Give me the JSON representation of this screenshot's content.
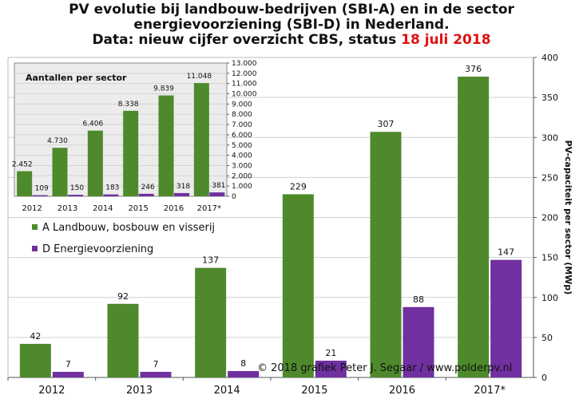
{
  "title": {
    "line1": "PV evolutie bij landbouw-bedrijven (SBI-A) en in de sector",
    "line2": "energievoorziening (SBI-D) in Nederland.",
    "line3_prefix": "Data: nieuw cijfer overzicht CBS, status ",
    "line3_date": "18 juli 2018"
  },
  "copyright": "© 2018 grafiek Peter J. Segaar / www.polderpv.nl",
  "colors": {
    "green": "#4e8a2c",
    "purple": "#7030a0",
    "inset_bg": "#ececec"
  },
  "chart_data": [
    {
      "type": "bar",
      "title": "",
      "categories": [
        "2012",
        "2013",
        "2014",
        "2015",
        "2016",
        "2017*"
      ],
      "series": [
        {
          "name": "A Landbouw, bosbouw en visserij",
          "values": [
            42,
            92,
            137,
            229,
            307,
            376
          ],
          "labels": [
            "42",
            "92",
            "137",
            "229",
            "307",
            "376"
          ]
        },
        {
          "name": "D Energievoorziening",
          "values": [
            7,
            7,
            8,
            21,
            88,
            147
          ],
          "labels": [
            "7",
            "7",
            "8",
            "21",
            "88",
            "147"
          ]
        }
      ],
      "xlabel": "",
      "ylabel": "PV-capaciteit per sector (MWp)",
      "ylim": [
        0,
        400
      ],
      "yticks": [
        "0",
        "50",
        "100",
        "150",
        "200",
        "250",
        "300",
        "350",
        "400"
      ],
      "ytick_values": [
        0,
        50,
        100,
        150,
        200,
        250,
        300,
        350,
        400
      ],
      "y_axis_position": "right",
      "grid": true,
      "legend_position": "left"
    },
    {
      "type": "bar",
      "title": "Aantallen per sector",
      "categories": [
        "2012",
        "2013",
        "2014",
        "2015",
        "2016",
        "2017*"
      ],
      "series": [
        {
          "name": "A Landbouw, bosbouw en visserij",
          "values": [
            2452,
            4730,
            6406,
            8338,
            9839,
            11048
          ],
          "labels": [
            "2.452",
            "4.730",
            "6.406",
            "8.338",
            "9.839",
            "11.048"
          ]
        },
        {
          "name": "D Energievoorziening",
          "values": [
            109,
            150,
            183,
            246,
            318,
            381
          ],
          "labels": [
            "109",
            "150",
            "183",
            "246",
            "318",
            "381"
          ]
        }
      ],
      "ylim": [
        0,
        13000
      ],
      "yticks": [
        "0",
        "1.000",
        "2.000",
        "3.000",
        "4.000",
        "5.000",
        "6.000",
        "7.000",
        "8.000",
        "9.000",
        "10.000",
        "11.000",
        "12.000",
        "13.000"
      ],
      "ytick_values": [
        0,
        1000,
        2000,
        3000,
        4000,
        5000,
        6000,
        7000,
        8000,
        9000,
        10000,
        11000,
        12000,
        13000
      ],
      "y_axis_position": "right",
      "grid": true
    }
  ]
}
